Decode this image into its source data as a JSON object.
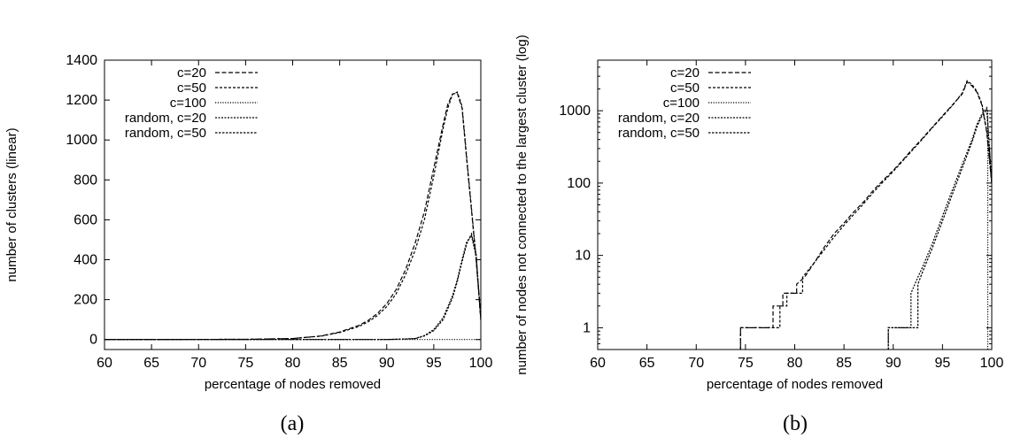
{
  "chart_data": [
    {
      "type": "line",
      "sublabel": "(a)",
      "xlabel": "percentage of nodes removed",
      "ylabel": "number of clusters (linear)",
      "xlim": [
        60,
        100
      ],
      "ylim": [
        -50,
        1400
      ],
      "yscale": "linear",
      "xticks": [
        60,
        65,
        70,
        75,
        80,
        85,
        90,
        95,
        100
      ],
      "yticks": [
        0,
        200,
        400,
        600,
        800,
        1000,
        1200,
        1400
      ],
      "legend_position": "top-left",
      "series": [
        {
          "name": "c=20",
          "dash": "5,2.5",
          "x": [
            60,
            75,
            80,
            83,
            85,
            87,
            88,
            89,
            90,
            91,
            92,
            93,
            94,
            95,
            95.5,
            96,
            96.5,
            97,
            97.5,
            98,
            98.5,
            99,
            99.5,
            100
          ],
          "y": [
            0,
            1,
            5,
            18,
            38,
            70,
            95,
            130,
            180,
            250,
            350,
            480,
            640,
            860,
            970,
            1080,
            1180,
            1230,
            1235,
            1160,
            900,
            650,
            400,
            100
          ]
        },
        {
          "name": "c=50",
          "dash": "3,2",
          "x": [
            60,
            75,
            80,
            83,
            85,
            87,
            88,
            89,
            90,
            91,
            92,
            93,
            94,
            95,
            95.5,
            96,
            96.5,
            97,
            97.5,
            98,
            98.5,
            99,
            99.5,
            100
          ],
          "y": [
            0,
            1,
            5,
            17,
            35,
            65,
            88,
            120,
            165,
            230,
            325,
            445,
            600,
            820,
            940,
            1060,
            1160,
            1230,
            1240,
            1170,
            910,
            660,
            410,
            100
          ]
        },
        {
          "name": "c=100",
          "dash": "1.2,1.6",
          "x": [
            60,
            100
          ],
          "y": [
            0,
            0
          ]
        },
        {
          "name": "random, c=20",
          "dash": "2,1.5",
          "x": [
            60,
            90,
            93,
            94,
            95,
            96,
            97,
            97.5,
            98,
            98.5,
            99,
            99.5,
            100
          ],
          "y": [
            0,
            0,
            5,
            20,
            50,
            110,
            220,
            300,
            400,
            490,
            520,
            420,
            100
          ]
        },
        {
          "name": "random, c=50",
          "dash": "2.5,1.5",
          "x": [
            60,
            90,
            93,
            94,
            95,
            96,
            97,
            97.5,
            98,
            98.5,
            99,
            99.5,
            100
          ],
          "y": [
            0,
            0,
            4,
            18,
            45,
            100,
            210,
            290,
            390,
            480,
            530,
            430,
            100
          ]
        }
      ]
    },
    {
      "type": "line",
      "sublabel": "(b)",
      "xlabel": "percentage of nodes removed",
      "ylabel": "number of nodes not connected to the largest cluster (log)",
      "xlim": [
        60,
        100
      ],
      "ylim": [
        0.5,
        5000
      ],
      "yscale": "log",
      "xticks": [
        60,
        65,
        70,
        75,
        80,
        85,
        90,
        95,
        100
      ],
      "yticks": [
        1,
        10,
        100,
        1000
      ],
      "legend_position": "top-left",
      "series": [
        {
          "name": "c=20",
          "dash": "5,2.5",
          "x": [
            74.5,
            74.5,
            77.8,
            77.8,
            78.8,
            78.8,
            80.2,
            80.2,
            81,
            82,
            83,
            84,
            85,
            86,
            87,
            88,
            89,
            90,
            91,
            92,
            93,
            94,
            95,
            96,
            97,
            97.5,
            98,
            98.5,
            99,
            99.5,
            100
          ],
          "y": [
            0.5,
            1,
            1,
            2,
            2,
            3,
            3,
            4,
            5,
            8,
            13,
            20,
            28,
            40,
            55,
            80,
            110,
            150,
            210,
            300,
            420,
            600,
            850,
            1200,
            1700,
            2500,
            2200,
            1800,
            1200,
            500,
            100
          ]
        },
        {
          "name": "c=50",
          "dash": "3,2",
          "x": [
            74.5,
            74.5,
            78.5,
            78.5,
            79.2,
            79.2,
            80.8,
            80.8,
            82,
            83,
            84,
            85,
            86,
            87,
            88,
            89,
            90,
            91,
            92,
            93,
            94,
            95,
            96,
            97,
            97.5,
            98,
            98.5,
            99,
            99.5,
            100
          ],
          "y": [
            0.5,
            1,
            1,
            2,
            2,
            3,
            3,
            5,
            8,
            12,
            18,
            26,
            37,
            52,
            75,
            105,
            145,
            205,
            290,
            410,
            590,
            830,
            1180,
            1750,
            2600,
            2300,
            1850,
            1250,
            520,
            100
          ]
        },
        {
          "name": "c=100",
          "dash": "1.2,1.6",
          "x": [
            99.6,
            99.6
          ],
          "y": [
            0.5,
            1000
          ]
        },
        {
          "name": "random, c=20",
          "dash": "2,1.5",
          "x": [
            89.5,
            89.5,
            91.8,
            91.8,
            92.5,
            93,
            94,
            95,
            96,
            97,
            98,
            98.5,
            99,
            99.5,
            100
          ],
          "y": [
            0.5,
            1,
            1,
            3,
            5,
            7,
            15,
            35,
            80,
            180,
            400,
            650,
            900,
            1100,
            100
          ]
        },
        {
          "name": "random, c=50",
          "dash": "2.5,1.5",
          "x": [
            89.5,
            89.5,
            92.5,
            92.5,
            93,
            94,
            95,
            96,
            97,
            98,
            98.5,
            99,
            99.5,
            100
          ],
          "y": [
            0.5,
            1,
            1,
            4,
            6,
            13,
            30,
            70,
            160,
            370,
            600,
            850,
            1050,
            100
          ]
        }
      ]
    }
  ]
}
